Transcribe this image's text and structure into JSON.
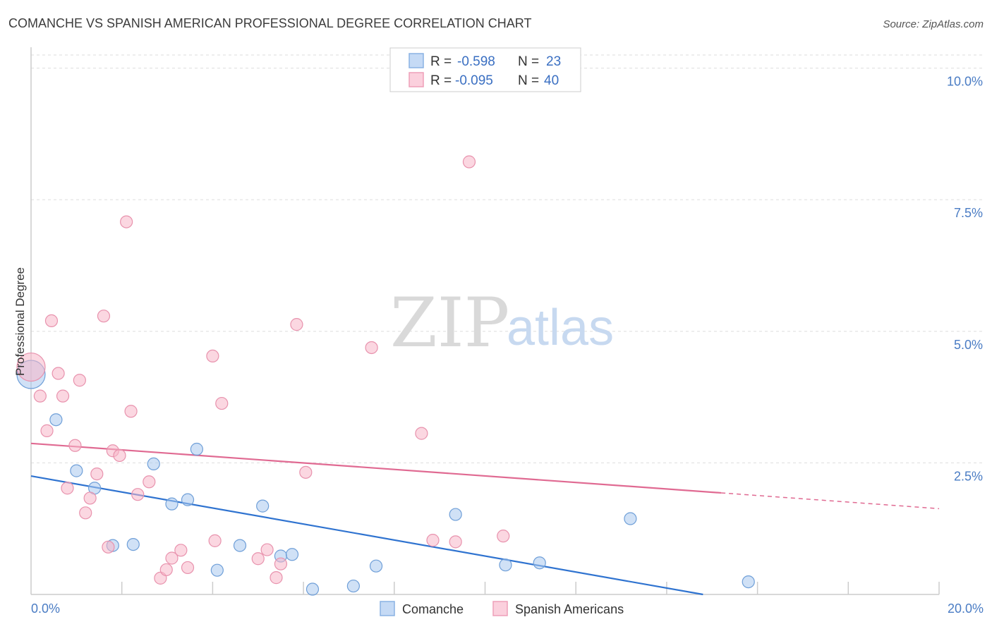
{
  "chart_data": {
    "type": "scatter",
    "title": "COMANCHE VS SPANISH AMERICAN PROFESSIONAL DEGREE CORRELATION CHART",
    "source": "Source: ZipAtlas.com",
    "ylabel": "Professional Degree",
    "xlabel": "",
    "xlim": [
      0,
      20
    ],
    "ylim": [
      0,
      10.25
    ],
    "x_tick_labels": [
      "0.0%",
      "20.0%"
    ],
    "y_ticks": [
      2.5,
      5.0,
      7.5,
      10.0
    ],
    "y_tick_labels": [
      "2.5%",
      "5.0%",
      "7.5%",
      "10.0%"
    ],
    "watermark": {
      "zip": "ZIP",
      "atlas": "atlas"
    },
    "legend": {
      "r_label": "R =",
      "n_label": "N =",
      "entries": [
        {
          "r": "-0.598",
          "n": "23"
        },
        {
          "r": "-0.095",
          "n": "40"
        }
      ]
    },
    "series": [
      {
        "name": "Comanche",
        "color": "#a9c8ef",
        "stroke": "#6f9fd8",
        "line_color": "#2f73d0",
        "trend": {
          "x0": 0,
          "y0": 2.25,
          "x1": 14.8,
          "y1": 0.0
        },
        "points": [
          {
            "x": 0.0,
            "y": 4.18,
            "big": true
          },
          {
            "x": 0.55,
            "y": 3.32
          },
          {
            "x": 1.0,
            "y": 2.35
          },
          {
            "x": 1.4,
            "y": 2.02
          },
          {
            "x": 1.8,
            "y": 0.93
          },
          {
            "x": 2.25,
            "y": 0.95
          },
          {
            "x": 2.7,
            "y": 2.48
          },
          {
            "x": 3.1,
            "y": 1.72
          },
          {
            "x": 3.45,
            "y": 1.8
          },
          {
            "x": 3.65,
            "y": 2.76
          },
          {
            "x": 4.1,
            "y": 0.46
          },
          {
            "x": 4.6,
            "y": 0.93
          },
          {
            "x": 5.1,
            "y": 1.68
          },
          {
            "x": 5.5,
            "y": 0.73
          },
          {
            "x": 5.75,
            "y": 0.76
          },
          {
            "x": 6.2,
            "y": 0.1
          },
          {
            "x": 7.1,
            "y": 0.16
          },
          {
            "x": 7.6,
            "y": 0.54
          },
          {
            "x": 9.35,
            "y": 1.52
          },
          {
            "x": 10.45,
            "y": 0.56
          },
          {
            "x": 11.2,
            "y": 0.6
          },
          {
            "x": 13.2,
            "y": 1.44
          },
          {
            "x": 15.8,
            "y": 0.24
          }
        ]
      },
      {
        "name": "Spanish Americans",
        "color": "#f7b6c9",
        "stroke": "#e892ad",
        "line_color": "#e06a92",
        "trend": {
          "x0": 0,
          "y0": 2.87,
          "x1": 15.2,
          "y1": 1.93
        },
        "trend_dashed": {
          "x0": 15.2,
          "y0": 1.93,
          "x1": 20.0,
          "y1": 1.63
        },
        "points": [
          {
            "x": 0.0,
            "y": 4.32,
            "big": true
          },
          {
            "x": 0.2,
            "y": 3.77
          },
          {
            "x": 0.35,
            "y": 3.11
          },
          {
            "x": 0.45,
            "y": 5.2
          },
          {
            "x": 0.6,
            "y": 4.2
          },
          {
            "x": 0.7,
            "y": 3.77
          },
          {
            "x": 0.8,
            "y": 2.02
          },
          {
            "x": 0.97,
            "y": 2.83
          },
          {
            "x": 1.07,
            "y": 4.07
          },
          {
            "x": 1.2,
            "y": 1.55
          },
          {
            "x": 1.3,
            "y": 1.83
          },
          {
            "x": 1.45,
            "y": 2.29
          },
          {
            "x": 1.6,
            "y": 5.29
          },
          {
            "x": 1.7,
            "y": 0.9
          },
          {
            "x": 1.8,
            "y": 2.73
          },
          {
            "x": 1.95,
            "y": 2.64
          },
          {
            "x": 2.1,
            "y": 7.08
          },
          {
            "x": 2.2,
            "y": 3.48
          },
          {
            "x": 2.35,
            "y": 1.9
          },
          {
            "x": 2.6,
            "y": 2.14
          },
          {
            "x": 2.85,
            "y": 0.31
          },
          {
            "x": 2.98,
            "y": 0.47
          },
          {
            "x": 3.1,
            "y": 0.69
          },
          {
            "x": 3.3,
            "y": 0.84
          },
          {
            "x": 3.45,
            "y": 0.51
          },
          {
            "x": 4.0,
            "y": 4.53
          },
          {
            "x": 4.05,
            "y": 1.02
          },
          {
            "x": 4.2,
            "y": 3.63
          },
          {
            "x": 5.0,
            "y": 0.68
          },
          {
            "x": 5.2,
            "y": 0.85
          },
          {
            "x": 5.4,
            "y": 0.32
          },
          {
            "x": 5.5,
            "y": 0.58
          },
          {
            "x": 5.85,
            "y": 5.13
          },
          {
            "x": 6.05,
            "y": 2.32
          },
          {
            "x": 7.5,
            "y": 4.69
          },
          {
            "x": 8.6,
            "y": 3.06
          },
          {
            "x": 8.85,
            "y": 1.03
          },
          {
            "x": 9.35,
            "y": 1.0
          },
          {
            "x": 9.65,
            "y": 8.22
          },
          {
            "x": 10.4,
            "y": 1.11
          }
        ]
      }
    ]
  }
}
